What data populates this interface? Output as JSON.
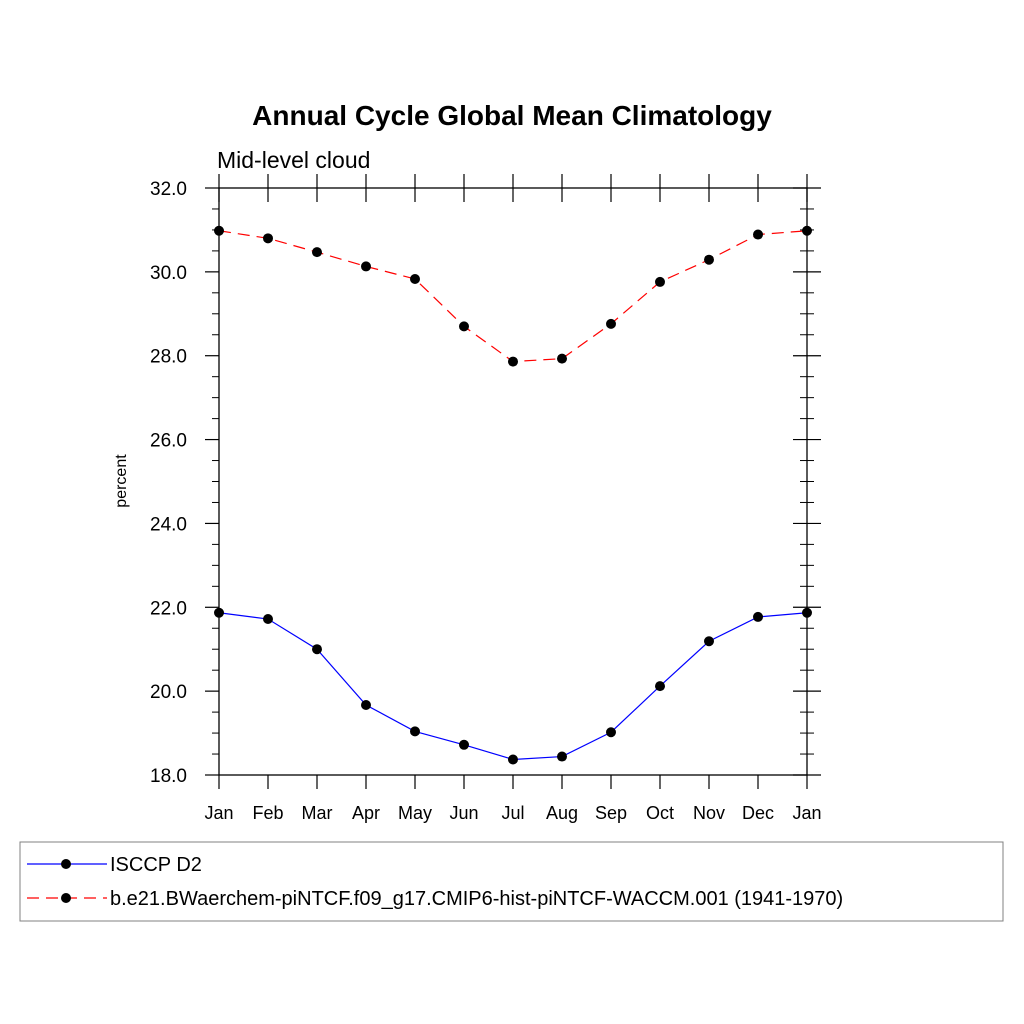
{
  "chart_data": {
    "type": "line",
    "title": "Annual Cycle Global Mean Climatology",
    "subtitle": "Mid-level cloud",
    "ylabel": "percent",
    "xlabel": "",
    "categories": [
      "Jan",
      "Feb",
      "Mar",
      "Apr",
      "May",
      "Jun",
      "Jul",
      "Aug",
      "Sep",
      "Oct",
      "Nov",
      "Dec",
      "Jan"
    ],
    "ylim": [
      18.0,
      32.0
    ],
    "yticks": [
      "18.0",
      "20.0",
      "22.0",
      "24.0",
      "26.0",
      "28.0",
      "30.0",
      "32.0"
    ],
    "grid": false,
    "legend_position": "bottom",
    "series": [
      {
        "name": "ISCCP D2",
        "color": "#0000ff",
        "line_style": "solid",
        "marker": "filled-circle",
        "values": [
          21.87,
          21.72,
          21.0,
          19.67,
          19.04,
          18.72,
          18.37,
          18.44,
          19.02,
          20.12,
          21.19,
          21.77,
          21.87
        ]
      },
      {
        "name": "b.e21.BWaerchem-piNTCF.f09_g17.CMIP6-hist-piNTCF-WACCM.001 (1941-1970)",
        "color": "#ff0000",
        "line_style": "dashed",
        "marker": "filled-circle",
        "values": [
          30.98,
          30.8,
          30.47,
          30.13,
          29.83,
          28.7,
          27.86,
          27.93,
          28.76,
          29.76,
          30.29,
          30.89,
          30.98
        ]
      }
    ]
  }
}
